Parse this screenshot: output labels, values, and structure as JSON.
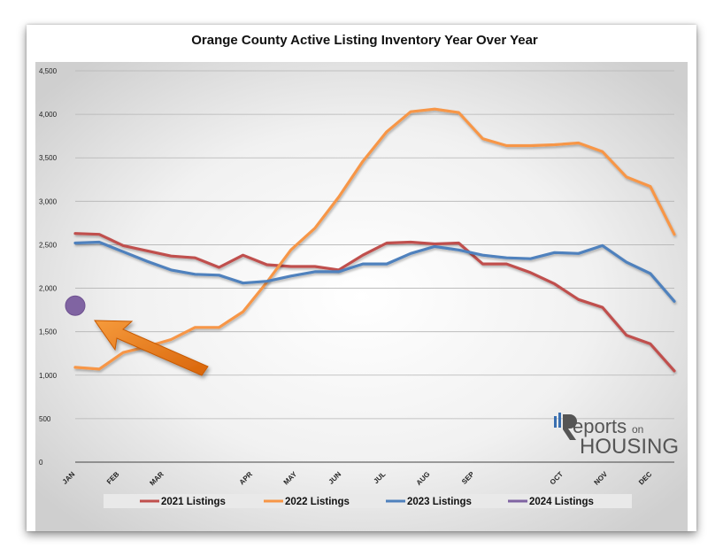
{
  "chart_data": {
    "type": "line",
    "title": "Orange County Active Listing Inventory Year Over Year",
    "xlabel": "",
    "ylabel": "",
    "ylim": [
      0,
      4500
    ],
    "yticks": [
      "0",
      "500",
      "1,000",
      "1,500",
      "2,000",
      "2,500",
      "3,000",
      "3,500",
      "4,000",
      "4,500"
    ],
    "month_labels": [
      "JAN",
      "FEB",
      "MAR",
      "APR",
      "MAY",
      "JUN",
      "JUL",
      "AUG",
      "SEP",
      "OCT",
      "NOV",
      "DEC"
    ],
    "month_label_index": [
      0,
      2,
      4,
      8,
      10,
      12,
      14,
      16,
      18,
      22,
      24,
      26
    ],
    "n_points": 28,
    "grid": "horizontal",
    "legend_position": "bottom",
    "series": [
      {
        "name": "2021 Listings",
        "color": "#c0504d",
        "values": [
          2630,
          2620,
          2490,
          2430,
          2370,
          2350,
          2240,
          2380,
          2270,
          2250,
          2250,
          2210,
          2380,
          2520,
          2530,
          2510,
          2520,
          2280,
          2280,
          2180,
          2050,
          1870,
          1780,
          1460,
          1360,
          1050
        ]
      },
      {
        "name": "2022 Listings",
        "color": "#f79646",
        "values": [
          1090,
          1070,
          1260,
          1330,
          1410,
          1550,
          1550,
          1730,
          2070,
          2440,
          2690,
          3050,
          3460,
          3800,
          4030,
          4060,
          4020,
          3720,
          3640,
          3640,
          3650,
          3670,
          3570,
          3280,
          3170,
          2620
        ]
      },
      {
        "name": "2023 Listings",
        "color": "#4f81bd",
        "values": [
          2520,
          2530,
          2420,
          2310,
          2210,
          2160,
          2150,
          2060,
          2080,
          2140,
          2190,
          2190,
          2280,
          2280,
          2400,
          2480,
          2440,
          2380,
          2350,
          2340,
          2410,
          2400,
          2490,
          2300,
          2170,
          1850
        ]
      },
      {
        "name": "2024 Listings",
        "color": "#8064a2",
        "values": [
          1800
        ]
      }
    ]
  },
  "logo": {
    "reports": "eports",
    "on": "on",
    "housing": "HOUSING"
  },
  "colors": {
    "arrow": "#e36c09",
    "plot_bg_center": "#ffffff",
    "plot_bg_edge": "#d2d2d2"
  }
}
